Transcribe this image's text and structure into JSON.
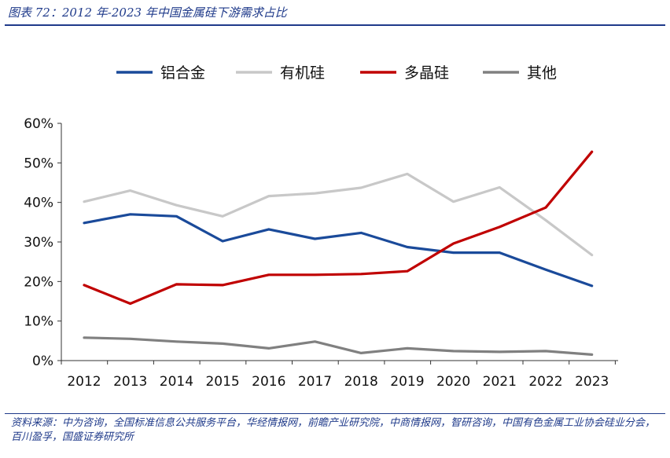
{
  "header": {
    "title": "图表 72：2012 年-2023 年中国金属硅下游需求占比"
  },
  "footer": {
    "source": "资料来源：中为咨询，全国标准信息公共服务平台，华经情报网，前瞻产业研究院，中商情报网，智研咨询，中国有色金属工业协会硅业分会，百川盈孚，国盛证券研究所"
  },
  "chart_data": {
    "type": "line",
    "title": "",
    "xlabel": "",
    "ylabel": "",
    "categories": [
      "2012",
      "2013",
      "2014",
      "2015",
      "2016",
      "2017",
      "2018",
      "2019",
      "2020",
      "2021",
      "2022",
      "2023"
    ],
    "ylim": [
      0,
      60
    ],
    "yticks": [
      "0%",
      "10%",
      "20%",
      "30%",
      "40%",
      "50%",
      "60%"
    ],
    "ytick_values": [
      0,
      10,
      20,
      30,
      40,
      50,
      60
    ],
    "grid": false,
    "legend_position": "top",
    "series": [
      {
        "name": "铝合金",
        "color": "#1a4a9a",
        "values": [
          34.8,
          37.0,
          36.5,
          30.2,
          33.2,
          30.8,
          32.3,
          28.7,
          27.3,
          27.3,
          23.0,
          18.9
        ]
      },
      {
        "name": "有机硅",
        "color": "#c8c8c8",
        "values": [
          40.2,
          43.0,
          39.3,
          36.5,
          41.6,
          42.3,
          43.7,
          47.2,
          40.2,
          43.8,
          35.5,
          26.7
        ]
      },
      {
        "name": "多晶硅",
        "color": "#c00000",
        "values": [
          19.1,
          14.4,
          19.3,
          19.1,
          21.7,
          21.7,
          21.9,
          22.6,
          29.6,
          33.8,
          38.7,
          52.8
        ]
      },
      {
        "name": "其他",
        "color": "#808080",
        "values": [
          5.8,
          5.5,
          4.8,
          4.3,
          3.1,
          4.8,
          1.9,
          3.1,
          2.4,
          2.2,
          2.4,
          1.5
        ]
      }
    ]
  }
}
